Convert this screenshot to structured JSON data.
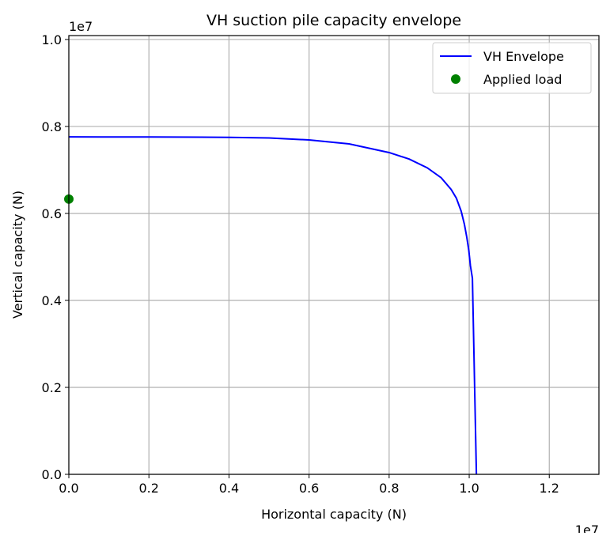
{
  "chart_data": {
    "type": "line",
    "title": "VH suction pile capacity envelope",
    "xlabel": "Horizontal capacity (N)",
    "ylabel": "Vertical capacity (N)",
    "x_offset_label": "1e7",
    "y_offset_label": "1e7",
    "xlim": [
      0,
      13240000
    ],
    "ylim": [
      0,
      10090000
    ],
    "xticks": [
      0,
      2000000,
      4000000,
      6000000,
      8000000,
      10000000,
      12000000
    ],
    "xtick_labels": [
      "0.0",
      "0.2",
      "0.4",
      "0.6",
      "0.8",
      "1.0",
      "1.2"
    ],
    "yticks": [
      0,
      2000000,
      4000000,
      6000000,
      8000000,
      10000000
    ],
    "ytick_labels": [
      "0.0",
      "0.2",
      "0.4",
      "0.6",
      "0.8",
      "1.0"
    ],
    "grid": true,
    "legend": "top-right",
    "series": [
      {
        "name": "VH Envelope",
        "kind": "line",
        "color": "#0000ff",
        "x": [
          0,
          2000000,
          4000000,
          5000000,
          6000000,
          7000000,
          8000000,
          8500000,
          8950000,
          9300000,
          9550000,
          9680000,
          9800000,
          9880000,
          9940000,
          9990000,
          10030000,
          10080000,
          10180000
        ],
        "y": [
          7760000,
          7758000,
          7750000,
          7735000,
          7690000,
          7600000,
          7400000,
          7250000,
          7050000,
          6820000,
          6550000,
          6350000,
          6050000,
          5750000,
          5450000,
          5150000,
          4800000,
          4510000,
          0
        ]
      },
      {
        "name": "Applied load",
        "kind": "scatter",
        "color": "#008000",
        "x": [
          0
        ],
        "y": [
          6330000
        ]
      }
    ]
  }
}
